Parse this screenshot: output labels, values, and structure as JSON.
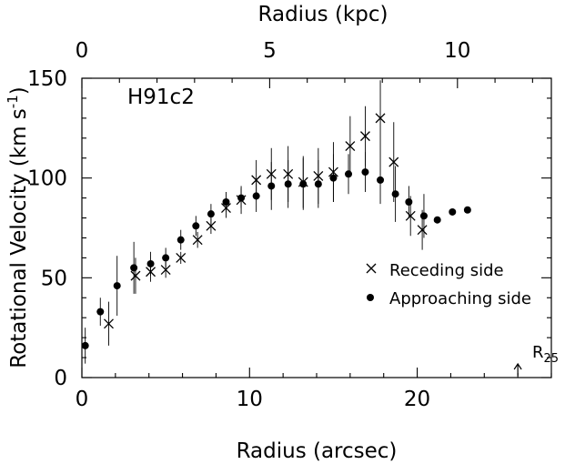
{
  "chart_data": {
    "type": "scatter",
    "title": "",
    "xlabel": "Radius (arcsec)",
    "ylabel": "Rotational Velocity (km s",
    "ylabel_sup": "-1",
    "ylabel_end": ")",
    "top_xlabel": "Radius (kpc)",
    "annotation": "H91c2",
    "r25_label": "R",
    "r25_sub": "25",
    "r25_arcsec": 26,
    "xlim": [
      0,
      28
    ],
    "ylim": [
      0,
      150
    ],
    "x_ticks": [
      0,
      10,
      20
    ],
    "y_ticks": [
      0,
      50,
      100,
      150
    ],
    "top_xlim_kpc": [
      0,
      12.5
    ],
    "top_ticks_kpc": [
      0,
      5,
      10
    ],
    "legend_position": "right",
    "series": [
      {
        "name": "Receding side",
        "marker": "cross",
        "points": [
          {
            "x": 1.6,
            "y": 27,
            "err": 11
          },
          {
            "x": 3.2,
            "y": 51,
            "err": 9
          },
          {
            "x": 4.1,
            "y": 53,
            "err": 5
          },
          {
            "x": 5.0,
            "y": 54,
            "err": 4
          },
          {
            "x": 5.9,
            "y": 60,
            "err": 3
          },
          {
            "x": 6.9,
            "y": 69,
            "err": 4
          },
          {
            "x": 7.7,
            "y": 76,
            "err": 4
          },
          {
            "x": 8.6,
            "y": 85,
            "err": 5
          },
          {
            "x": 9.5,
            "y": 89,
            "err": 7
          },
          {
            "x": 10.4,
            "y": 99,
            "err": 10
          },
          {
            "x": 11.3,
            "y": 102,
            "err": 13
          },
          {
            "x": 12.3,
            "y": 102,
            "err": 14
          },
          {
            "x": 13.2,
            "y": 98,
            "err": 13
          },
          {
            "x": 14.1,
            "y": 101,
            "err": 14
          },
          {
            "x": 15.0,
            "y": 103,
            "err": 15
          },
          {
            "x": 16.0,
            "y": 116,
            "err": 15
          },
          {
            "x": 16.9,
            "y": 121,
            "err": 15
          },
          {
            "x": 17.8,
            "y": 130,
            "err": 19
          },
          {
            "x": 18.6,
            "y": 108,
            "err": 20
          },
          {
            "x": 19.6,
            "y": 81,
            "err": 10
          },
          {
            "x": 20.3,
            "y": 74,
            "err": 10
          }
        ]
      },
      {
        "name": "Approaching side",
        "marker": "dot",
        "points": [
          {
            "x": 0.2,
            "y": 16,
            "err": 9
          },
          {
            "x": 1.1,
            "y": 33,
            "err": 7
          },
          {
            "x": 2.1,
            "y": 46,
            "err": 15
          },
          {
            "x": 3.1,
            "y": 55,
            "err": 13
          },
          {
            "x": 4.1,
            "y": 57,
            "err": 6
          },
          {
            "x": 5.0,
            "y": 60,
            "err": 5
          },
          {
            "x": 5.9,
            "y": 69,
            "err": 5
          },
          {
            "x": 6.8,
            "y": 76,
            "err": 5
          },
          {
            "x": 7.7,
            "y": 82,
            "err": 5
          },
          {
            "x": 8.6,
            "y": 88,
            "err": 5
          },
          {
            "x": 9.5,
            "y": 90,
            "err": 5
          },
          {
            "x": 10.4,
            "y": 91,
            "err": 8
          },
          {
            "x": 11.3,
            "y": 96,
            "err": 12
          },
          {
            "x": 12.3,
            "y": 97,
            "err": 12
          },
          {
            "x": 13.2,
            "y": 97,
            "err": 13
          },
          {
            "x": 14.1,
            "y": 97,
            "err": 12
          },
          {
            "x": 15.0,
            "y": 100,
            "err": 12
          },
          {
            "x": 15.9,
            "y": 102,
            "err": 10
          },
          {
            "x": 16.9,
            "y": 103,
            "err": 10
          },
          {
            "x": 17.8,
            "y": 99,
            "err": 12
          },
          {
            "x": 18.7,
            "y": 92,
            "err": 14
          },
          {
            "x": 19.5,
            "y": 88,
            "err": 8
          },
          {
            "x": 20.4,
            "y": 81,
            "err": 11
          },
          {
            "x": 21.2,
            "y": 79,
            "err": 0
          },
          {
            "x": 22.1,
            "y": 83,
            "err": 0
          },
          {
            "x": 23.0,
            "y": 84,
            "err": 0
          }
        ]
      }
    ]
  }
}
